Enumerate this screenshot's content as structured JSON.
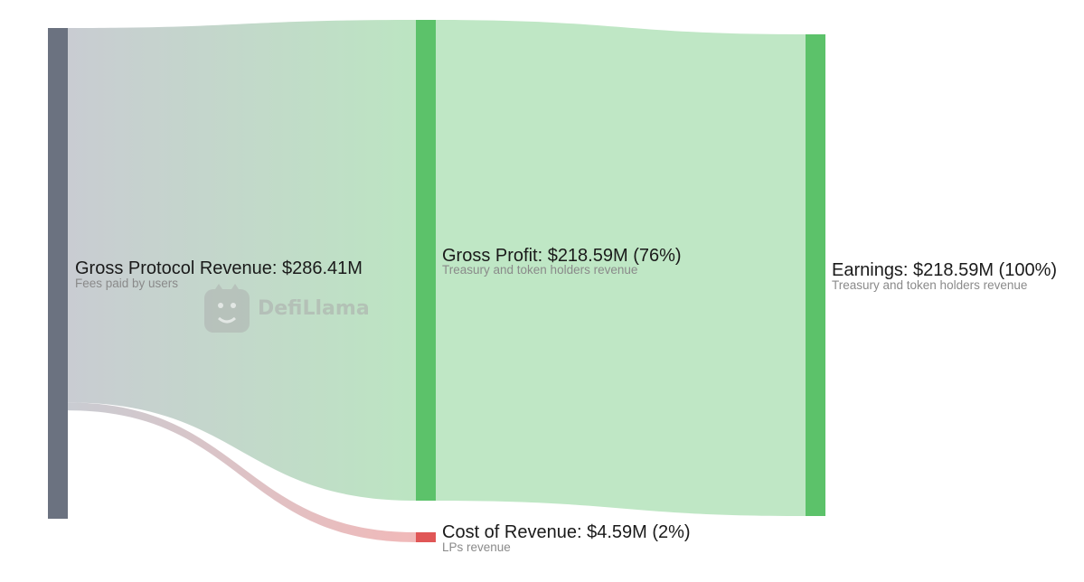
{
  "chart_data": {
    "type": "sankey",
    "units": "USD millions",
    "nodes": [
      {
        "id": "gross",
        "label": "Gross Protocol Revenue: $286.41M",
        "sublabel": "Fees paid by users",
        "value": 286.41,
        "color": "#6b7280"
      },
      {
        "id": "profit",
        "label": "Gross Profit: $218.59M (76%)",
        "sublabel": "Treasury and token holders revenue",
        "value": 218.59,
        "color": "#5cc26a"
      },
      {
        "id": "cost",
        "label": "Cost of Revenue: $4.59M (2%)",
        "sublabel": "LPs revenue",
        "value": 4.59,
        "color": "#e05656"
      },
      {
        "id": "earnings",
        "label": "Earnings: $218.59M (100%)",
        "sublabel": "Treasury and token holders revenue",
        "value": 218.59,
        "color": "#5cc26a"
      }
    ],
    "links": [
      {
        "source": "gross",
        "target": "profit",
        "value": 218.59,
        "color": "#5cc26a"
      },
      {
        "source": "gross",
        "target": "cost",
        "value": 4.59,
        "color": "#e05656"
      },
      {
        "source": "profit",
        "target": "earnings",
        "value": 218.59,
        "color": "#5cc26a"
      }
    ]
  },
  "watermark": {
    "text": "DefiLlama",
    "icon": "llama-icon"
  }
}
